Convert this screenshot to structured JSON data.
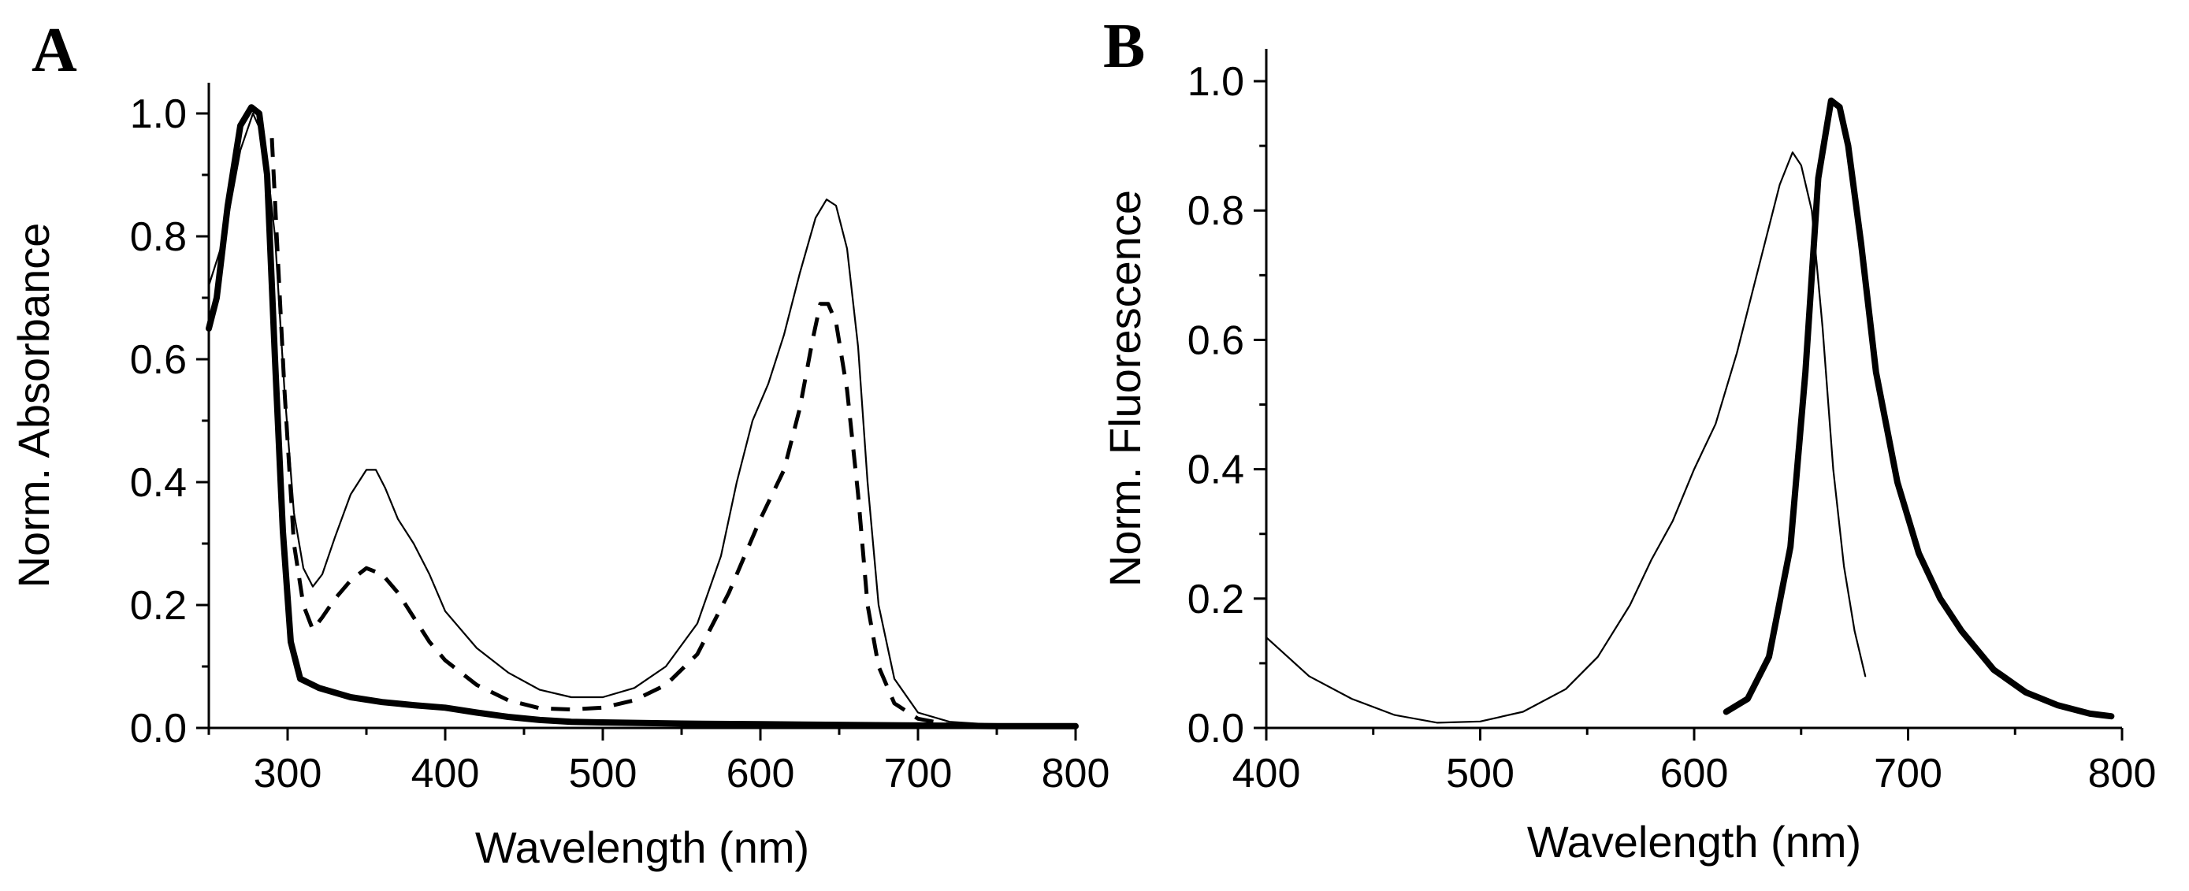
{
  "chart_data": [
    {
      "type": "line",
      "panel_label": "A",
      "xlabel": "Wavelength (nm)",
      "ylabel": "Norm. Absorbance",
      "xlim": [
        250,
        800
      ],
      "ylim": [
        0,
        1.05
      ],
      "xticks": [
        "300",
        "400",
        "500",
        "600",
        "700",
        "800"
      ],
      "yticks": [
        "0.0",
        "0.2",
        "0.4",
        "0.6",
        "0.8",
        "1.0"
      ],
      "series": [
        {
          "name": "thin",
          "style": "thin",
          "points": [
            [
              250,
              0.72
            ],
            [
              260,
              0.8
            ],
            [
              270,
              0.94
            ],
            [
              278,
              1.0
            ],
            [
              285,
              0.96
            ],
            [
              292,
              0.8
            ],
            [
              298,
              0.55
            ],
            [
              304,
              0.35
            ],
            [
              310,
              0.26
            ],
            [
              316,
              0.23
            ],
            [
              322,
              0.25
            ],
            [
              330,
              0.31
            ],
            [
              340,
              0.38
            ],
            [
              350,
              0.42
            ],
            [
              356,
              0.42
            ],
            [
              362,
              0.39
            ],
            [
              370,
              0.34
            ],
            [
              380,
              0.3
            ],
            [
              390,
              0.25
            ],
            [
              400,
              0.19
            ],
            [
              420,
              0.13
            ],
            [
              440,
              0.09
            ],
            [
              460,
              0.062
            ],
            [
              480,
              0.05
            ],
            [
              500,
              0.05
            ],
            [
              520,
              0.065
            ],
            [
              540,
              0.1
            ],
            [
              560,
              0.17
            ],
            [
              575,
              0.28
            ],
            [
              585,
              0.4
            ],
            [
              595,
              0.5
            ],
            [
              605,
              0.56
            ],
            [
              615,
              0.64
            ],
            [
              625,
              0.74
            ],
            [
              635,
              0.83
            ],
            [
              642,
              0.86
            ],
            [
              648,
              0.85
            ],
            [
              655,
              0.78
            ],
            [
              662,
              0.62
            ],
            [
              668,
              0.4
            ],
            [
              675,
              0.2
            ],
            [
              685,
              0.08
            ],
            [
              700,
              0.025
            ],
            [
              720,
              0.01
            ],
            [
              750,
              0.005
            ],
            [
              800,
              0.003
            ]
          ]
        },
        {
          "name": "dashed",
          "style": "dashed",
          "points": [
            [
              290,
              0.96
            ],
            [
              298,
              0.55
            ],
            [
              304,
              0.3
            ],
            [
              310,
              0.2
            ],
            [
              316,
              0.16
            ],
            [
              322,
              0.18
            ],
            [
              330,
              0.21
            ],
            [
              340,
              0.24
            ],
            [
              350,
              0.26
            ],
            [
              360,
              0.25
            ],
            [
              370,
              0.22
            ],
            [
              380,
              0.18
            ],
            [
              390,
              0.14
            ],
            [
              400,
              0.11
            ],
            [
              420,
              0.07
            ],
            [
              440,
              0.045
            ],
            [
              460,
              0.032
            ],
            [
              480,
              0.03
            ],
            [
              500,
              0.033
            ],
            [
              520,
              0.045
            ],
            [
              540,
              0.07
            ],
            [
              560,
              0.12
            ],
            [
              580,
              0.22
            ],
            [
              600,
              0.34
            ],
            [
              615,
              0.42
            ],
            [
              625,
              0.52
            ],
            [
              633,
              0.63
            ],
            [
              638,
              0.69
            ],
            [
              643,
              0.69
            ],
            [
              648,
              0.66
            ],
            [
              655,
              0.55
            ],
            [
              662,
              0.38
            ],
            [
              668,
              0.2
            ],
            [
              675,
              0.1
            ],
            [
              685,
              0.04
            ],
            [
              700,
              0.015
            ],
            [
              720,
              0.005
            ],
            [
              740,
              0.002
            ]
          ]
        },
        {
          "name": "thick",
          "style": "thick",
          "points": [
            [
              250,
              0.65
            ],
            [
              255,
              0.7
            ],
            [
              262,
              0.85
            ],
            [
              270,
              0.98
            ],
            [
              277,
              1.01
            ],
            [
              282,
              1.0
            ],
            [
              287,
              0.9
            ],
            [
              292,
              0.6
            ],
            [
              297,
              0.32
            ],
            [
              302,
              0.14
            ],
            [
              308,
              0.08
            ],
            [
              320,
              0.065
            ],
            [
              340,
              0.05
            ],
            [
              360,
              0.042
            ],
            [
              380,
              0.037
            ],
            [
              400,
              0.033
            ],
            [
              420,
              0.025
            ],
            [
              440,
              0.018
            ],
            [
              460,
              0.013
            ],
            [
              480,
              0.01
            ],
            [
              500,
              0.009
            ],
            [
              550,
              0.007
            ],
            [
              600,
              0.006
            ],
            [
              650,
              0.005
            ],
            [
              700,
              0.004
            ],
            [
              750,
              0.003
            ],
            [
              800,
              0.003
            ]
          ]
        }
      ]
    },
    {
      "type": "line",
      "panel_label": "B",
      "xlabel": "Wavelength (nm)",
      "ylabel": "Norm. Fluorescence",
      "xlim": [
        400,
        800
      ],
      "ylim": [
        0,
        1.05
      ],
      "xticks": [
        "400",
        "500",
        "600",
        "700",
        "800"
      ],
      "yticks": [
        "0.0",
        "0.2",
        "0.4",
        "0.6",
        "0.8",
        "1.0"
      ],
      "series": [
        {
          "name": "thin",
          "style": "thin",
          "points": [
            [
              400,
              0.14
            ],
            [
              410,
              0.11
            ],
            [
              420,
              0.08
            ],
            [
              440,
              0.045
            ],
            [
              460,
              0.02
            ],
            [
              480,
              0.008
            ],
            [
              500,
              0.01
            ],
            [
              520,
              0.025
            ],
            [
              540,
              0.06
            ],
            [
              555,
              0.11
            ],
            [
              570,
              0.19
            ],
            [
              580,
              0.26
            ],
            [
              590,
              0.32
            ],
            [
              600,
              0.4
            ],
            [
              610,
              0.47
            ],
            [
              620,
              0.58
            ],
            [
              630,
              0.71
            ],
            [
              640,
              0.84
            ],
            [
              646,
              0.89
            ],
            [
              650,
              0.87
            ],
            [
              655,
              0.8
            ],
            [
              660,
              0.62
            ],
            [
              665,
              0.4
            ],
            [
              670,
              0.25
            ],
            [
              675,
              0.15
            ],
            [
              680,
              0.08
            ]
          ]
        },
        {
          "name": "thick",
          "style": "thick",
          "points": [
            [
              615,
              0.025
            ],
            [
              625,
              0.045
            ],
            [
              635,
              0.11
            ],
            [
              645,
              0.28
            ],
            [
              652,
              0.55
            ],
            [
              658,
              0.85
            ],
            [
              664,
              0.97
            ],
            [
              668,
              0.96
            ],
            [
              672,
              0.9
            ],
            [
              678,
              0.75
            ],
            [
              685,
              0.55
            ],
            [
              695,
              0.38
            ],
            [
              705,
              0.27
            ],
            [
              715,
              0.2
            ],
            [
              725,
              0.15
            ],
            [
              740,
              0.09
            ],
            [
              755,
              0.055
            ],
            [
              770,
              0.035
            ],
            [
              785,
              0.022
            ],
            [
              795,
              0.018
            ]
          ]
        }
      ]
    }
  ]
}
